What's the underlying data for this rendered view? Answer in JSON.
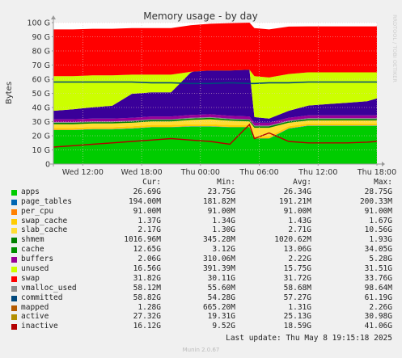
{
  "chart_data": {
    "type": "area",
    "title": "Memory usage - by day",
    "ylabel": "Bytes",
    "ylim": [
      0,
      100
    ],
    "y_ticks": [
      {
        "v": 0,
        "label": "0"
      },
      {
        "v": 10,
        "label": "10 G"
      },
      {
        "v": 20,
        "label": "20 G"
      },
      {
        "v": 30,
        "label": "30 G"
      },
      {
        "v": 40,
        "label": "40 G"
      },
      {
        "v": 50,
        "label": "50 G"
      },
      {
        "v": 60,
        "label": "60 G"
      },
      {
        "v": 70,
        "label": "70 G"
      },
      {
        "v": 80,
        "label": "80 G"
      },
      {
        "v": 90,
        "label": "90 G"
      },
      {
        "v": 100,
        "label": "100 G"
      }
    ],
    "xlim": [
      0,
      33
    ],
    "x_ticks": [
      {
        "v": 3,
        "label": "Wed 12:00"
      },
      {
        "v": 9,
        "label": "Wed 18:00"
      },
      {
        "v": 15,
        "label": "Thu 00:00"
      },
      {
        "v": 21,
        "label": "Thu 06:00"
      },
      {
        "v": 27,
        "label": "Thu 12:00"
      },
      {
        "v": 33,
        "label": "Thu 18:00"
      }
    ],
    "grid": true,
    "x": [
      0,
      2,
      4,
      6,
      8,
      10,
      12,
      14,
      16,
      18,
      20,
      20.5,
      22,
      24,
      26,
      28,
      30,
      32,
      33
    ],
    "series": [
      {
        "name": "apps",
        "color": "#00cc00",
        "values": [
          24,
          24,
          24.5,
          24.5,
          25,
          26,
          26,
          26.5,
          26.5,
          26,
          26,
          18,
          18,
          25,
          27,
          27,
          27,
          27,
          27
        ]
      },
      {
        "name": "page_tables",
        "color": "#0066b3",
        "values": [
          0.19,
          0.19,
          0.19,
          0.19,
          0.19,
          0.19,
          0.19,
          0.19,
          0.19,
          0.19,
          0.19,
          0.19,
          0.19,
          0.19,
          0.19,
          0.19,
          0.19,
          0.19,
          0.19
        ]
      },
      {
        "name": "per_cpu",
        "color": "#ff8000",
        "values": [
          0.09,
          0.09,
          0.09,
          0.09,
          0.09,
          0.09,
          0.09,
          0.09,
          0.09,
          0.09,
          0.09,
          0.09,
          0.09,
          0.09,
          0.09,
          0.09,
          0.09,
          0.09,
          0.09
        ]
      },
      {
        "name": "swap_cache",
        "color": "#ffcc00",
        "values": [
          1.4,
          1.4,
          1.4,
          1.4,
          1.4,
          1.4,
          1.4,
          1.4,
          1.4,
          1.4,
          1.4,
          1.4,
          1.4,
          1.4,
          1.4,
          1.4,
          1.4,
          1.4,
          1.4
        ]
      },
      {
        "name": "slab_cache",
        "color": "#ffdd33",
        "values": [
          2.5,
          2.5,
          2.5,
          2.5,
          2.5,
          2.5,
          2.5,
          3,
          3.5,
          3,
          2.5,
          6,
          6,
          2.5,
          2.2,
          2.2,
          2.2,
          2.2,
          2.2
        ]
      },
      {
        "name": "shmem",
        "color": "#008000",
        "values": [
          1,
          1,
          1,
          1,
          1,
          1,
          1,
          1,
          1,
          1,
          1,
          1,
          1,
          1,
          1,
          1,
          1,
          1,
          1
        ]
      },
      {
        "name": "cache",
        "color": "#8c8c8c",
        "values": [
          0.5,
          0.5,
          0.5,
          0.5,
          0.5,
          0.5,
          0.5,
          0.5,
          0.5,
          0.5,
          0.5,
          0.5,
          0.5,
          0.5,
          0.5,
          0.5,
          0.5,
          0.5,
          0.5
        ]
      },
      {
        "name": "buffers",
        "color": "#990099",
        "values": [
          2,
          2,
          2,
          2,
          2,
          2,
          2,
          2,
          2,
          2,
          2,
          2,
          2,
          2,
          2,
          2,
          2,
          2,
          2
        ]
      },
      {
        "name": "cache-body",
        "color": "#3a0099",
        "values": [
          6,
          7,
          8,
          9,
          17,
          17,
          17,
          30,
          35,
          35,
          33,
          4,
          3,
          5,
          7,
          8,
          9,
          10,
          12
        ]
      },
      {
        "name": "unused",
        "color": "#ccff00",
        "values": [
          24.5,
          23.5,
          22.5,
          21.5,
          13.5,
          12.5,
          12.5,
          0.5,
          -4,
          -3,
          0,
          29,
          29,
          26,
          23.5,
          22.5,
          21.5,
          20.5,
          18.5
        ]
      },
      {
        "name": "swap",
        "color": "#ff0000",
        "values": [
          33,
          33,
          33,
          33,
          33,
          33,
          33,
          33,
          33,
          33.5,
          34,
          34,
          34,
          33.5,
          32.5,
          32.5,
          32.5,
          32.5,
          32.5
        ]
      }
    ],
    "committed_line": [
      58,
      58,
      58,
      58,
      58,
      57.5,
      57.5,
      57,
      57,
      57.5,
      57,
      57,
      57.5,
      57.5,
      58,
      58,
      58,
      58,
      58
    ],
    "inactive_line": [
      12,
      13,
      14,
      15,
      16,
      17,
      18,
      17,
      16,
      14,
      28,
      18,
      22,
      16,
      15,
      15,
      15,
      15.5,
      16
    ],
    "legend": [
      {
        "name": "apps",
        "color": "#00cc00",
        "cur": "26.69G",
        "min": "23.75G",
        "avg": "26.34G",
        "max": "28.75G"
      },
      {
        "name": "page_tables",
        "color": "#0066b3",
        "cur": "194.00M",
        "min": "181.82M",
        "avg": "191.21M",
        "max": "200.33M"
      },
      {
        "name": "per_cpu",
        "color": "#ff8000",
        "cur": "91.00M",
        "min": "91.00M",
        "avg": "91.00M",
        "max": "91.00M"
      },
      {
        "name": "swap_cache",
        "color": "#ffcc00",
        "cur": "1.37G",
        "min": "1.34G",
        "avg": "1.43G",
        "max": "1.67G"
      },
      {
        "name": "slab_cache",
        "color": "#ffdd33",
        "cur": "2.17G",
        "min": "1.30G",
        "avg": "2.71G",
        "max": "10.56G"
      },
      {
        "name": "shmem",
        "color": "#008000",
        "cur": "1016.96M",
        "min": "345.28M",
        "avg": "1020.62M",
        "max": "1.93G"
      },
      {
        "name": "cache",
        "color": "#008f00",
        "cur": "12.65G",
        "min": "3.12G",
        "avg": "13.06G",
        "max": "34.05G"
      },
      {
        "name": "buffers",
        "color": "#990099",
        "cur": "2.06G",
        "min": "310.06M",
        "avg": "2.22G",
        "max": "5.28G"
      },
      {
        "name": "unused",
        "color": "#ccff00",
        "cur": "16.56G",
        "min": "391.39M",
        "avg": "15.75G",
        "max": "31.51G"
      },
      {
        "name": "swap",
        "color": "#ff0000",
        "cur": "31.82G",
        "min": "30.11G",
        "avg": "31.72G",
        "max": "33.76G"
      },
      {
        "name": "vmalloc_used",
        "color": "#8c8c8c",
        "cur": "58.12M",
        "min": "55.60M",
        "avg": "58.68M",
        "max": "98.64M"
      },
      {
        "name": "committed",
        "color": "#00487d",
        "cur": "58.82G",
        "min": "54.28G",
        "avg": "57.27G",
        "max": "61.19G"
      },
      {
        "name": "mapped",
        "color": "#b35a00",
        "cur": "1.28G",
        "min": "665.20M",
        "avg": "1.31G",
        "max": "2.26G"
      },
      {
        "name": "active",
        "color": "#b38f00",
        "cur": "27.32G",
        "min": "19.31G",
        "avg": "25.13G",
        "max": "30.98G"
      },
      {
        "name": "inactive",
        "color": "#b30000",
        "cur": "16.12G",
        "min": "9.52G",
        "avg": "18.59G",
        "max": "41.06G"
      }
    ],
    "legend_headers": {
      "cur": "Cur:",
      "min": "Min:",
      "avg": "Avg:",
      "max": "Max:"
    },
    "colors": {
      "grid": "#e8c8c8",
      "axis": "#999999",
      "committed": "#00487d",
      "inactive": "#b30000",
      "active": "#b38f00"
    }
  },
  "side_label": "RRDTOOL / TOBI OETIKER",
  "last_update": "Last update: Thu May  8 19:15:18 2025",
  "munin_version": "Munin 2.0.67"
}
